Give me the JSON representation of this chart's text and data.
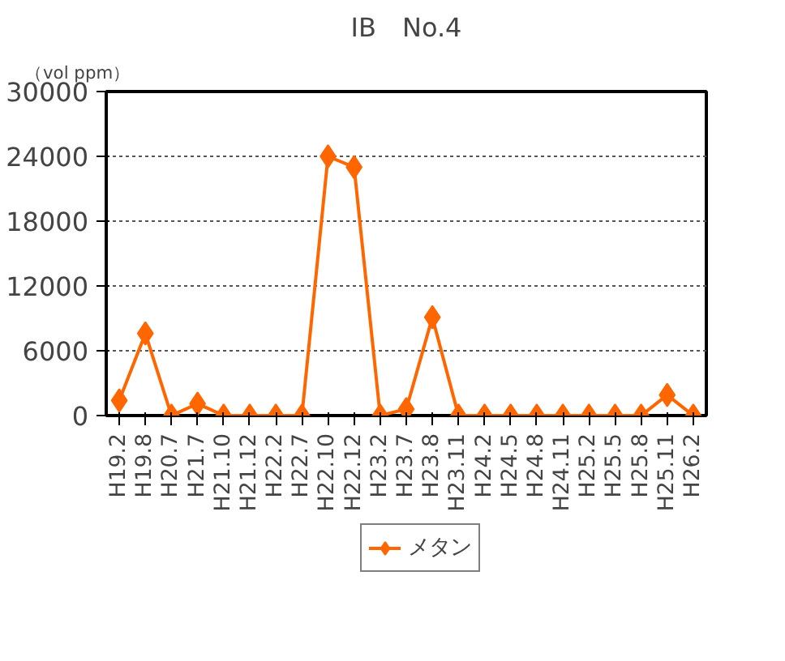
{
  "chart_data": {
    "type": "line",
    "title": "IB　No.4",
    "ylabel": "（vol ppm）",
    "categories": [
      "H19.2",
      "H19.8",
      "H20.7",
      "H21.7",
      "H21.10",
      "H21.12",
      "H22.2",
      "H22.7",
      "H22.10",
      "H22.12",
      "H23.2",
      "H23.7",
      "H23.8",
      "H23.11",
      "H24.2",
      "H24.5",
      "H24.8",
      "H24.11",
      "H25.2",
      "H25.5",
      "H25.8",
      "H25.11",
      "H26.2"
    ],
    "series": [
      {
        "name": "メタン",
        "color": "#ff6600",
        "values": [
          1400,
          7600,
          0,
          1100,
          0,
          0,
          0,
          0,
          24000,
          23000,
          0,
          600,
          9100,
          0,
          0,
          0,
          0,
          0,
          0,
          0,
          0,
          1900,
          0
        ]
      }
    ],
    "ylim": [
      0,
      30000
    ],
    "yticks": [
      0,
      6000,
      12000,
      18000,
      24000,
      30000
    ],
    "grid": "y",
    "marker": "diamond",
    "legend": "bottom"
  }
}
